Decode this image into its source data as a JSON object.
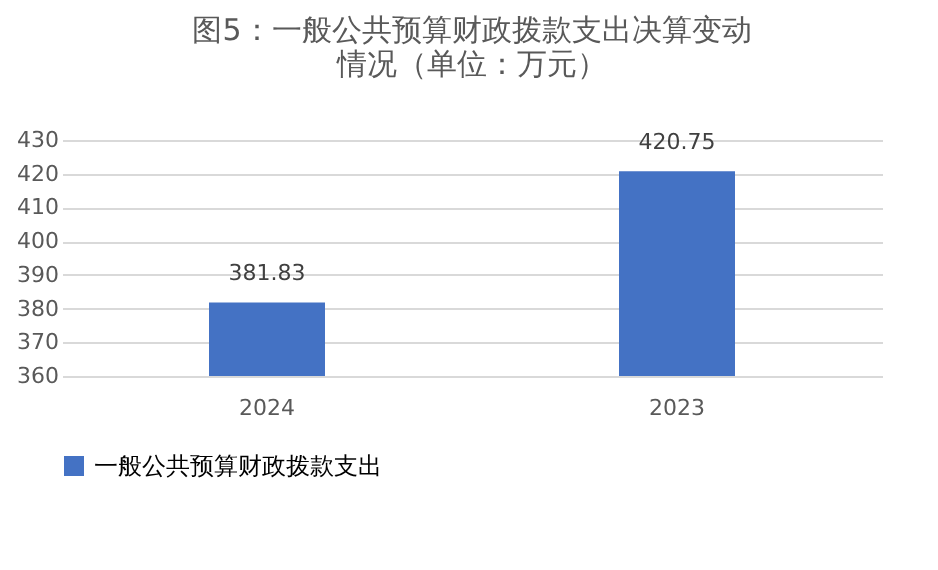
{
  "chart_data": {
    "type": "bar",
    "title": "图5：一般公共预算财政拨款支出决算变动情况（单位：万元）",
    "categories": [
      "2024",
      "2023"
    ],
    "series": [
      {
        "name": "一般公共预算财政拨款支出",
        "color": "#4472c4",
        "values": [
          381.83,
          420.75
        ]
      }
    ],
    "ylim": [
      360,
      430
    ],
    "yticks": [
      360,
      370,
      380,
      390,
      400,
      410,
      420,
      430
    ],
    "grid": "y",
    "legend": "bottom",
    "data_labels": true
  }
}
